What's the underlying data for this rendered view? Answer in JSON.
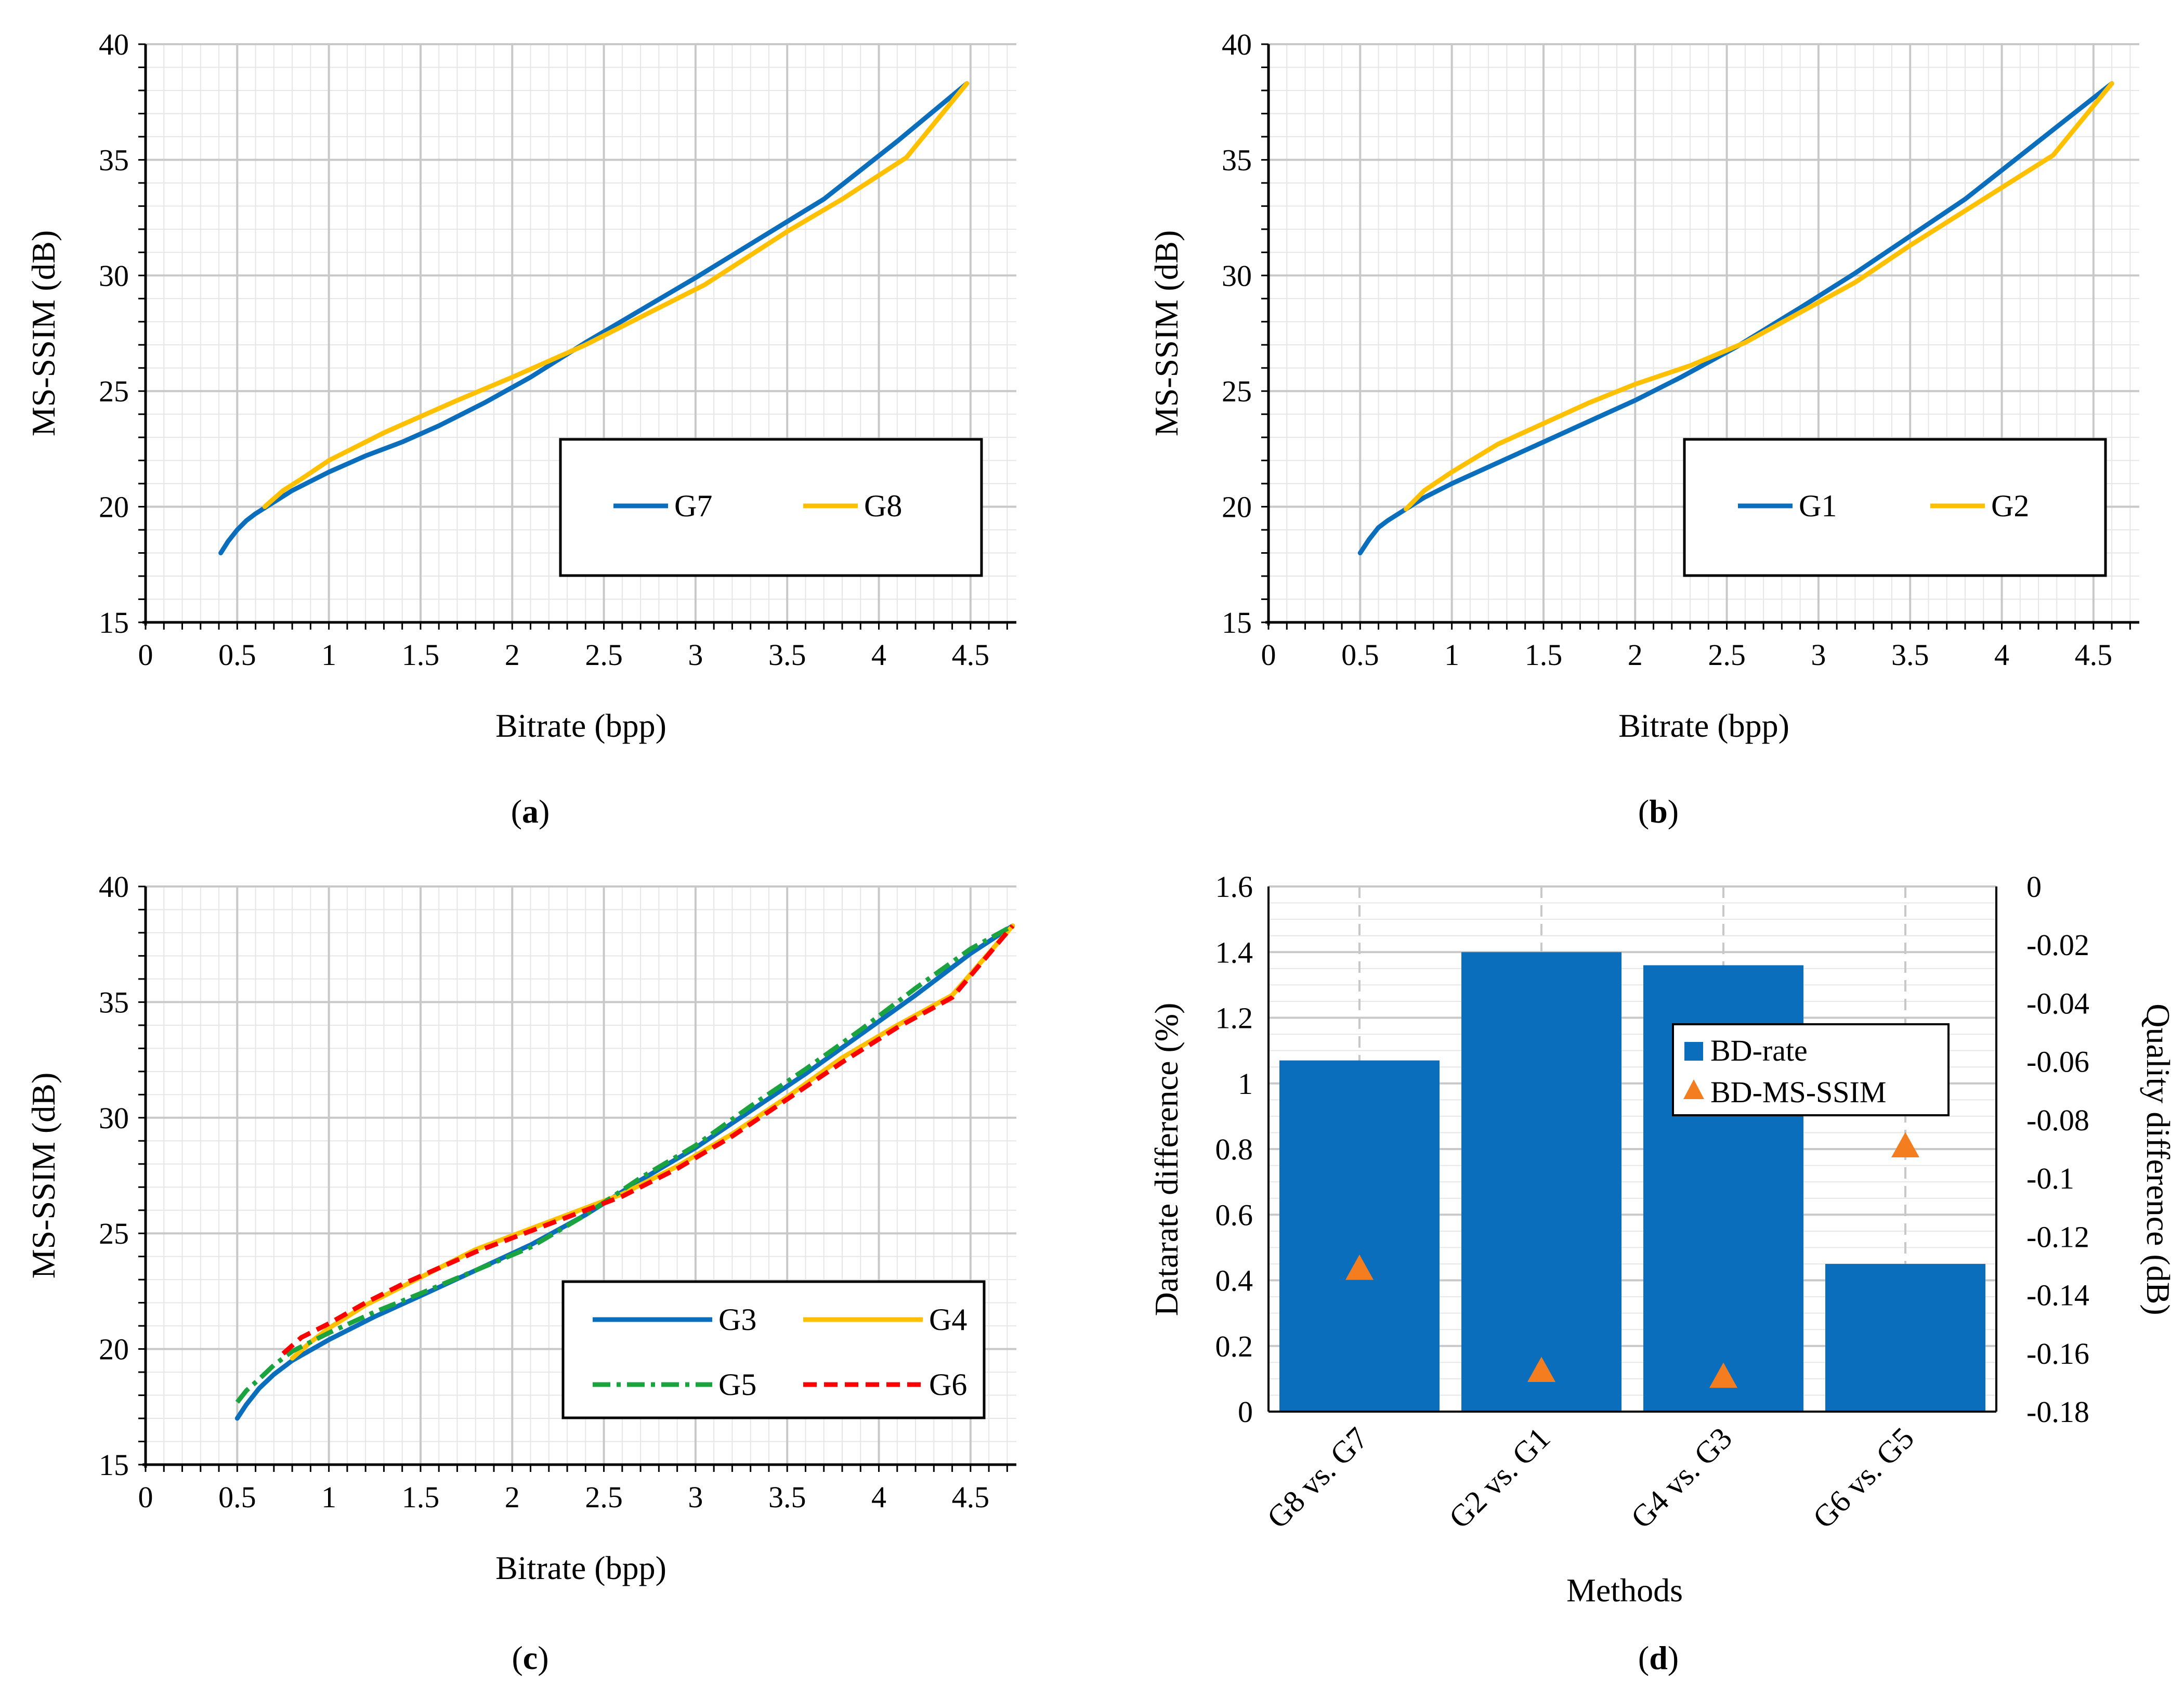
{
  "chart_data": [
    {
      "id": "a",
      "type": "line",
      "caption": "(a)",
      "caption_letter": "a",
      "xlabel": "Bitrate (bpp)",
      "ylabel": "MS-SSIM (dB)",
      "xlim": [
        0,
        4.75
      ],
      "ylim": [
        15,
        40
      ],
      "xticks": [
        0,
        0.5,
        1,
        1.5,
        2,
        2.5,
        3,
        3.5,
        4,
        4.5
      ],
      "xtick_labels": [
        "0",
        "0.5",
        "1",
        "1.5",
        "2",
        "2.5",
        "3",
        "3.5",
        "4",
        "4.5"
      ],
      "yticks": [
        15,
        20,
        25,
        30,
        35,
        40
      ],
      "ytick_labels": [
        "15",
        "20",
        "25",
        "30",
        "35",
        "40"
      ],
      "grid": true,
      "legend_position": "lower-right",
      "series": [
        {
          "name": "G7",
          "color": "#0a6ebd",
          "dash": "solid",
          "x": [
            0.41,
            0.45,
            0.5,
            0.55,
            0.6,
            0.7,
            0.8,
            1.0,
            1.2,
            1.4,
            1.6,
            1.85,
            2.1,
            2.4,
            2.7,
            3.0,
            3.35,
            3.7,
            4.1,
            4.48
          ],
          "y": [
            18.0,
            18.5,
            19.0,
            19.4,
            19.7,
            20.2,
            20.7,
            21.5,
            22.2,
            22.8,
            23.5,
            24.5,
            25.6,
            27.1,
            28.5,
            29.9,
            31.6,
            33.3,
            35.8,
            38.3
          ]
        },
        {
          "name": "G8",
          "color": "#ffc000",
          "dash": "solid",
          "x": [
            0.65,
            0.75,
            0.85,
            1.0,
            1.15,
            1.3,
            1.5,
            1.7,
            2.0,
            2.4,
            2.7,
            3.05,
            3.5,
            3.8,
            4.15,
            4.48
          ],
          "y": [
            20.0,
            20.7,
            21.2,
            22.0,
            22.6,
            23.2,
            23.9,
            24.6,
            25.6,
            27.0,
            28.2,
            29.6,
            31.9,
            33.3,
            35.1,
            38.3
          ]
        }
      ]
    },
    {
      "id": "b",
      "type": "line",
      "caption": "(b)",
      "caption_letter": "b",
      "xlabel": "Bitrate (bpp)",
      "ylabel": "MS-SSIM (dB)",
      "xlim": [
        0,
        4.75
      ],
      "ylim": [
        15,
        40
      ],
      "xticks": [
        0,
        0.5,
        1,
        1.5,
        2,
        2.5,
        3,
        3.5,
        4,
        4.5
      ],
      "xtick_labels": [
        "0",
        "0.5",
        "1",
        "1.5",
        "2",
        "2.5",
        "3",
        "3.5",
        "4",
        "4.5"
      ],
      "yticks": [
        15,
        20,
        25,
        30,
        35,
        40
      ],
      "ytick_labels": [
        "15",
        "20",
        "25",
        "30",
        "35",
        "40"
      ],
      "grid": true,
      "legend_position": "lower-right",
      "series": [
        {
          "name": "G1",
          "color": "#0a6ebd",
          "dash": "solid",
          "x": [
            0.5,
            0.55,
            0.6,
            0.65,
            0.75,
            0.85,
            1.0,
            1.25,
            1.5,
            1.75,
            2.0,
            2.25,
            2.55,
            2.9,
            3.2,
            3.5,
            3.8,
            4.2,
            4.6
          ],
          "y": [
            18.0,
            18.6,
            19.1,
            19.4,
            19.9,
            20.4,
            21.0,
            21.9,
            22.8,
            23.7,
            24.6,
            25.6,
            26.9,
            28.6,
            30.1,
            31.7,
            33.3,
            35.8,
            38.3
          ]
        },
        {
          "name": "G2",
          "color": "#ffc000",
          "dash": "solid",
          "x": [
            0.75,
            0.85,
            1.0,
            1.25,
            1.5,
            1.75,
            2.0,
            2.3,
            2.6,
            2.9,
            3.2,
            3.5,
            3.8,
            4.0,
            4.28,
            4.6
          ],
          "y": [
            19.9,
            20.7,
            21.5,
            22.7,
            23.6,
            24.5,
            25.3,
            26.1,
            27.1,
            28.4,
            29.7,
            31.3,
            32.8,
            33.8,
            35.2,
            38.3
          ]
        }
      ]
    },
    {
      "id": "c",
      "type": "line",
      "caption": "(c)",
      "caption_letter": "c",
      "xlabel": "Bitrate (bpp)",
      "ylabel": "MS-SSIM (dB)",
      "xlim": [
        0,
        4.75
      ],
      "ylim": [
        15,
        40
      ],
      "xticks": [
        0,
        0.5,
        1,
        1.5,
        2,
        2.5,
        3,
        3.5,
        4,
        4.5
      ],
      "xtick_labels": [
        "0",
        "0.5",
        "1",
        "1.5",
        "2",
        "2.5",
        "3",
        "3.5",
        "4",
        "4.5"
      ],
      "yticks": [
        15,
        20,
        25,
        30,
        35,
        40
      ],
      "ytick_labels": [
        "15",
        "20",
        "25",
        "30",
        "35",
        "40"
      ],
      "grid": true,
      "legend_position": "lower-right",
      "series": [
        {
          "name": "G3",
          "color": "#0a6ebd",
          "dash": "solid",
          "x": [
            0.5,
            0.55,
            0.62,
            0.7,
            0.8,
            1.0,
            1.25,
            1.5,
            1.8,
            2.1,
            2.4,
            2.7,
            3.0,
            3.3,
            3.6,
            3.9,
            4.2,
            4.5,
            4.73
          ],
          "y": [
            17.0,
            17.6,
            18.3,
            18.9,
            19.5,
            20.4,
            21.4,
            22.3,
            23.4,
            24.5,
            25.8,
            27.3,
            28.7,
            30.3,
            31.9,
            33.6,
            35.3,
            37.1,
            38.3
          ]
        },
        {
          "name": "G4",
          "color": "#ffc000",
          "dash": "solid",
          "x": [
            0.8,
            0.9,
            1.0,
            1.2,
            1.4,
            1.6,
            1.8,
            2.0,
            2.3,
            2.6,
            2.9,
            3.2,
            3.5,
            3.8,
            4.1,
            4.4,
            4.73
          ],
          "y": [
            19.6,
            20.3,
            20.9,
            21.9,
            22.7,
            23.5,
            24.3,
            24.9,
            25.8,
            26.7,
            27.9,
            29.3,
            30.9,
            32.6,
            34.0,
            35.3,
            38.3
          ]
        },
        {
          "name": "G5",
          "color": "#1aa33f",
          "dash": "dashdot",
          "x": [
            0.5,
            0.55,
            0.62,
            0.7,
            0.8,
            1.0,
            1.25,
            1.5,
            1.8,
            2.1,
            2.4,
            2.7,
            3.0,
            3.3,
            3.6,
            3.9,
            4.2,
            4.5,
            4.73
          ],
          "y": [
            17.7,
            18.2,
            18.7,
            19.3,
            19.9,
            20.7,
            21.6,
            22.4,
            23.4,
            24.4,
            25.8,
            27.4,
            28.8,
            30.5,
            32.1,
            33.8,
            35.6,
            37.3,
            38.3
          ]
        },
        {
          "name": "G6",
          "color": "#ff0000",
          "dash": "dash",
          "x": [
            0.75,
            0.85,
            1.0,
            1.2,
            1.4,
            1.6,
            1.8,
            2.0,
            2.3,
            2.6,
            2.9,
            3.2,
            3.5,
            3.8,
            4.1,
            4.4,
            4.73
          ],
          "y": [
            19.8,
            20.5,
            21.1,
            22.0,
            22.8,
            23.5,
            24.2,
            24.8,
            25.7,
            26.6,
            27.8,
            29.2,
            30.8,
            32.4,
            33.9,
            35.2,
            38.3
          ]
        }
      ]
    },
    {
      "id": "d",
      "type": "bar",
      "caption": "(d)",
      "caption_letter": "d",
      "xlabel": "Methods",
      "ylabel": "Datarate difference  (%)",
      "y2label": "Quality difference (dB)",
      "categories": [
        "G8 vs. G7",
        "G2 vs. G1",
        "G4 vs. G3",
        "G6 vs. G5"
      ],
      "ylim": [
        0,
        1.6
      ],
      "yticks": [
        0,
        0.2,
        0.4,
        0.6,
        0.8,
        1,
        1.2,
        1.4,
        1.6
      ],
      "ytick_labels": [
        "0",
        "0.2",
        "0.4",
        "0.6",
        "0.8",
        "1",
        "1.2",
        "1.4",
        "1.6"
      ],
      "y2lim": [
        -0.18,
        0
      ],
      "y2ticks": [
        0,
        -0.02,
        -0.04,
        -0.06,
        -0.08,
        -0.1,
        -0.12,
        -0.14,
        -0.16,
        -0.18
      ],
      "y2tick_labels": [
        "0",
        "-0.02",
        "-0.04",
        "-0.06",
        "-0.08",
        "-0.1",
        "-0.12",
        "-0.14",
        "-0.16",
        "-0.18"
      ],
      "grid": true,
      "legend_position": "top-right",
      "series": [
        {
          "name": "BD-rate",
          "kind": "bar",
          "axis": "left",
          "color": "#0a6ebd",
          "values": [
            1.07,
            1.4,
            1.36,
            0.45
          ]
        },
        {
          "name": "BD-MS-SSIM",
          "kind": "marker",
          "axis": "right",
          "color": "#f47d20",
          "values": [
            -0.131,
            -0.166,
            -0.168,
            -0.089
          ]
        }
      ]
    }
  ]
}
